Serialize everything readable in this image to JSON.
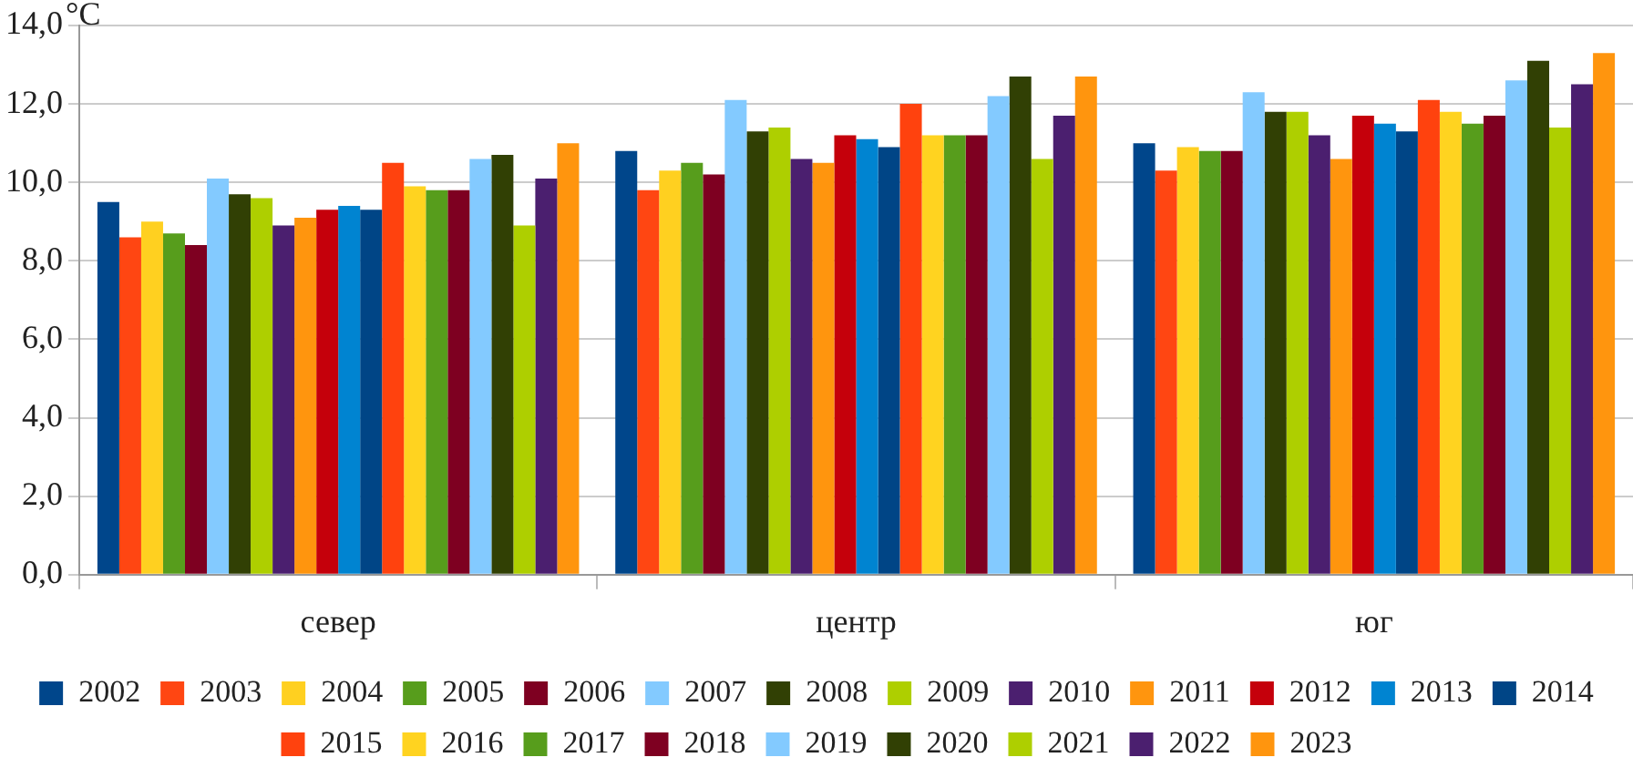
{
  "chart_data": {
    "type": "bar",
    "ylabel": "°C",
    "categories": [
      "север",
      "центр",
      "юг"
    ],
    "series": [
      {
        "name": "2002",
        "color": "#00468b",
        "values": [
          9.5,
          10.8,
          11.0
        ]
      },
      {
        "name": "2003",
        "color": "#ff4612",
        "values": [
          8.6,
          9.8,
          10.3
        ]
      },
      {
        "name": "2004",
        "color": "#ffd020",
        "values": [
          9.0,
          10.3,
          10.9
        ]
      },
      {
        "name": "2005",
        "color": "#579d1c",
        "values": [
          8.7,
          10.5,
          10.8
        ]
      },
      {
        "name": "2006",
        "color": "#7e0021",
        "values": [
          8.4,
          10.2,
          10.8
        ]
      },
      {
        "name": "2007",
        "color": "#83caff",
        "values": [
          10.1,
          12.1,
          12.3
        ]
      },
      {
        "name": "2008",
        "color": "#314004",
        "values": [
          9.7,
          11.3,
          11.8
        ]
      },
      {
        "name": "2009",
        "color": "#aecf00",
        "values": [
          9.6,
          11.4,
          11.8
        ]
      },
      {
        "name": "2010",
        "color": "#4b1f6f",
        "values": [
          8.9,
          10.6,
          11.2
        ]
      },
      {
        "name": "2011",
        "color": "#ff950e",
        "values": [
          9.1,
          10.5,
          10.6
        ]
      },
      {
        "name": "2012",
        "color": "#c5000b",
        "values": [
          9.3,
          11.2,
          11.7
        ]
      },
      {
        "name": "2013",
        "color": "#0084d1",
        "values": [
          9.4,
          11.1,
          11.5
        ]
      },
      {
        "name": "2014",
        "color": "#004586",
        "values": [
          9.3,
          10.9,
          11.3
        ]
      },
      {
        "name": "2015",
        "color": "#ff420e",
        "values": [
          10.5,
          12.0,
          12.1
        ]
      },
      {
        "name": "2016",
        "color": "#ffd320",
        "values": [
          9.9,
          11.2,
          11.8
        ]
      },
      {
        "name": "2017",
        "color": "#579d1c",
        "values": [
          9.8,
          11.2,
          11.5
        ]
      },
      {
        "name": "2018",
        "color": "#7e0021",
        "values": [
          9.8,
          11.2,
          11.7
        ]
      },
      {
        "name": "2019",
        "color": "#83caff",
        "values": [
          10.6,
          12.2,
          12.6
        ]
      },
      {
        "name": "2020",
        "color": "#314004",
        "values": [
          10.7,
          12.7,
          13.1
        ]
      },
      {
        "name": "2021",
        "color": "#aecf00",
        "values": [
          8.9,
          10.6,
          11.4
        ]
      },
      {
        "name": "2022",
        "color": "#4b1f6f",
        "values": [
          10.1,
          11.7,
          12.5
        ]
      },
      {
        "name": "2023",
        "color": "#ff950e",
        "values": [
          11.0,
          12.7,
          13.3
        ]
      }
    ],
    "ylim": [
      0,
      14
    ],
    "yticks": [
      {
        "value": 0,
        "label": "0,0"
      },
      {
        "value": 2,
        "label": "2,0"
      },
      {
        "value": 4,
        "label": "4,0"
      },
      {
        "value": 6,
        "label": "6,0"
      },
      {
        "value": 8,
        "label": "8,0"
      },
      {
        "value": 10,
        "label": "10,0"
      },
      {
        "value": 12,
        "label": "12,0"
      },
      {
        "value": 14,
        "label": "14,0"
      }
    ],
    "grid": "y",
    "legend": "bottom"
  }
}
